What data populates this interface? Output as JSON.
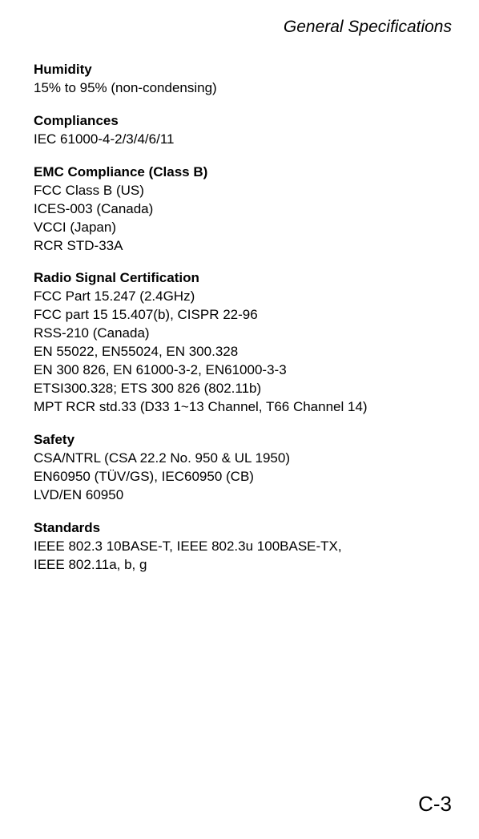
{
  "header": {
    "title": "General Specifications"
  },
  "sections": {
    "humidity": {
      "title": "Humidity",
      "lines": [
        "15% to 95% (non-condensing)"
      ]
    },
    "compliances": {
      "title": "Compliances",
      "lines": [
        "IEC 61000-4-2/3/4/6/11"
      ]
    },
    "emc": {
      "title": "EMC Compliance (Class B)",
      "lines": [
        "FCC Class B (US)",
        "ICES-003 (Canada)",
        "VCCI (Japan)",
        "RCR STD-33A"
      ]
    },
    "radio": {
      "title": "Radio Signal Certification",
      "lines": [
        "FCC Part 15.247 (2.4GHz)",
        "FCC part 15 15.407(b), CISPR 22-96",
        "RSS-210 (Canada)",
        "EN 55022, EN55024, EN 300.328",
        "EN 300 826, EN 61000-3-2, EN61000-3-3",
        "ETSI300.328; ETS 300 826 (802.11b)",
        "MPT RCR std.33 (D33 1~13 Channel, T66 Channel 14)"
      ]
    },
    "safety": {
      "title": "Safety",
      "lines": [
        "CSA/NTRL (CSA 22.2 No. 950 & UL 1950)",
        "EN60950 (TÜV/GS), IEC60950 (CB)",
        "LVD/EN 60950"
      ]
    },
    "standards": {
      "title": "Standards",
      "lines": [
        "IEEE 802.3 10BASE-T, IEEE 802.3u 100BASE-TX,",
        "IEEE 802.11a, b, g"
      ]
    }
  },
  "page_number": "C-3"
}
